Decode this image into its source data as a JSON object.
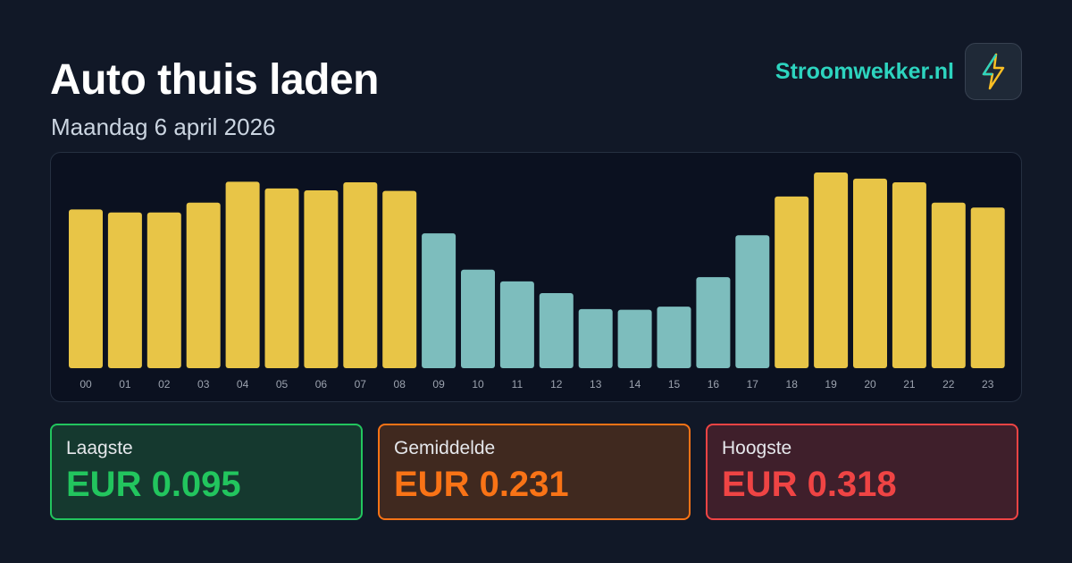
{
  "brand": "Stroomwekker.nl",
  "chart_data": {
    "type": "bar",
    "title": "Auto thuis laden",
    "subtitle": "Maandag 6 april 2026",
    "categories": [
      "00",
      "01",
      "02",
      "03",
      "04",
      "05",
      "06",
      "07",
      "08",
      "09",
      "10",
      "11",
      "12",
      "13",
      "14",
      "15",
      "16",
      "17",
      "18",
      "19",
      "20",
      "21",
      "22",
      "23"
    ],
    "values": [
      0.258,
      0.253,
      0.253,
      0.269,
      0.303,
      0.292,
      0.289,
      0.302,
      0.288,
      0.219,
      0.16,
      0.141,
      0.122,
      0.096,
      0.095,
      0.1,
      0.148,
      0.216,
      0.279,
      0.318,
      0.308,
      0.302,
      0.269,
      0.261
    ],
    "colors": [
      "#e8c547",
      "#e8c547",
      "#e8c547",
      "#e8c547",
      "#e8c547",
      "#e8c547",
      "#e8c547",
      "#e8c547",
      "#e8c547",
      "#7dbdbd",
      "#7dbdbd",
      "#7dbdbd",
      "#7dbdbd",
      "#7dbdbd",
      "#7dbdbd",
      "#7dbdbd",
      "#7dbdbd",
      "#7dbdbd",
      "#e8c547",
      "#e8c547",
      "#e8c547",
      "#e8c547",
      "#e8c547",
      "#e8c547"
    ]
  },
  "stats": [
    {
      "label": "Laagste",
      "value": "EUR 0.095"
    },
    {
      "label": "Gemiddelde",
      "value": "EUR 0.231"
    },
    {
      "label": "Hoogste",
      "value": "EUR 0.318"
    }
  ]
}
